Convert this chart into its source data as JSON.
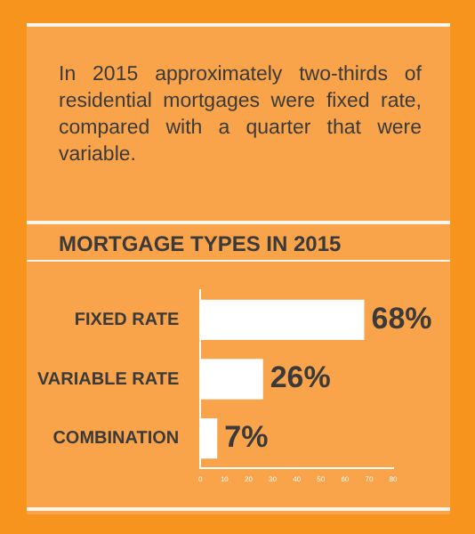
{
  "chart_data": {
    "type": "bar",
    "orientation": "horizontal",
    "subtitle": "In 2015 approximately two-thirds of residential mortgages were fixed rate, compared with a quarter that were variable.",
    "title": "MORTGAGE TYPES IN 2015",
    "categories": [
      "FIXED RATE",
      "VARIABLE RATE",
      "COMBINATION"
    ],
    "values": [
      68,
      26,
      7
    ],
    "value_labels": [
      "68%",
      "26%",
      "7%"
    ],
    "color": "#ffffff",
    "xlim": [
      0,
      80
    ],
    "xticks": [
      0,
      10,
      20,
      30,
      40,
      50,
      60,
      70,
      80
    ],
    "grid": false,
    "legend": false
  }
}
